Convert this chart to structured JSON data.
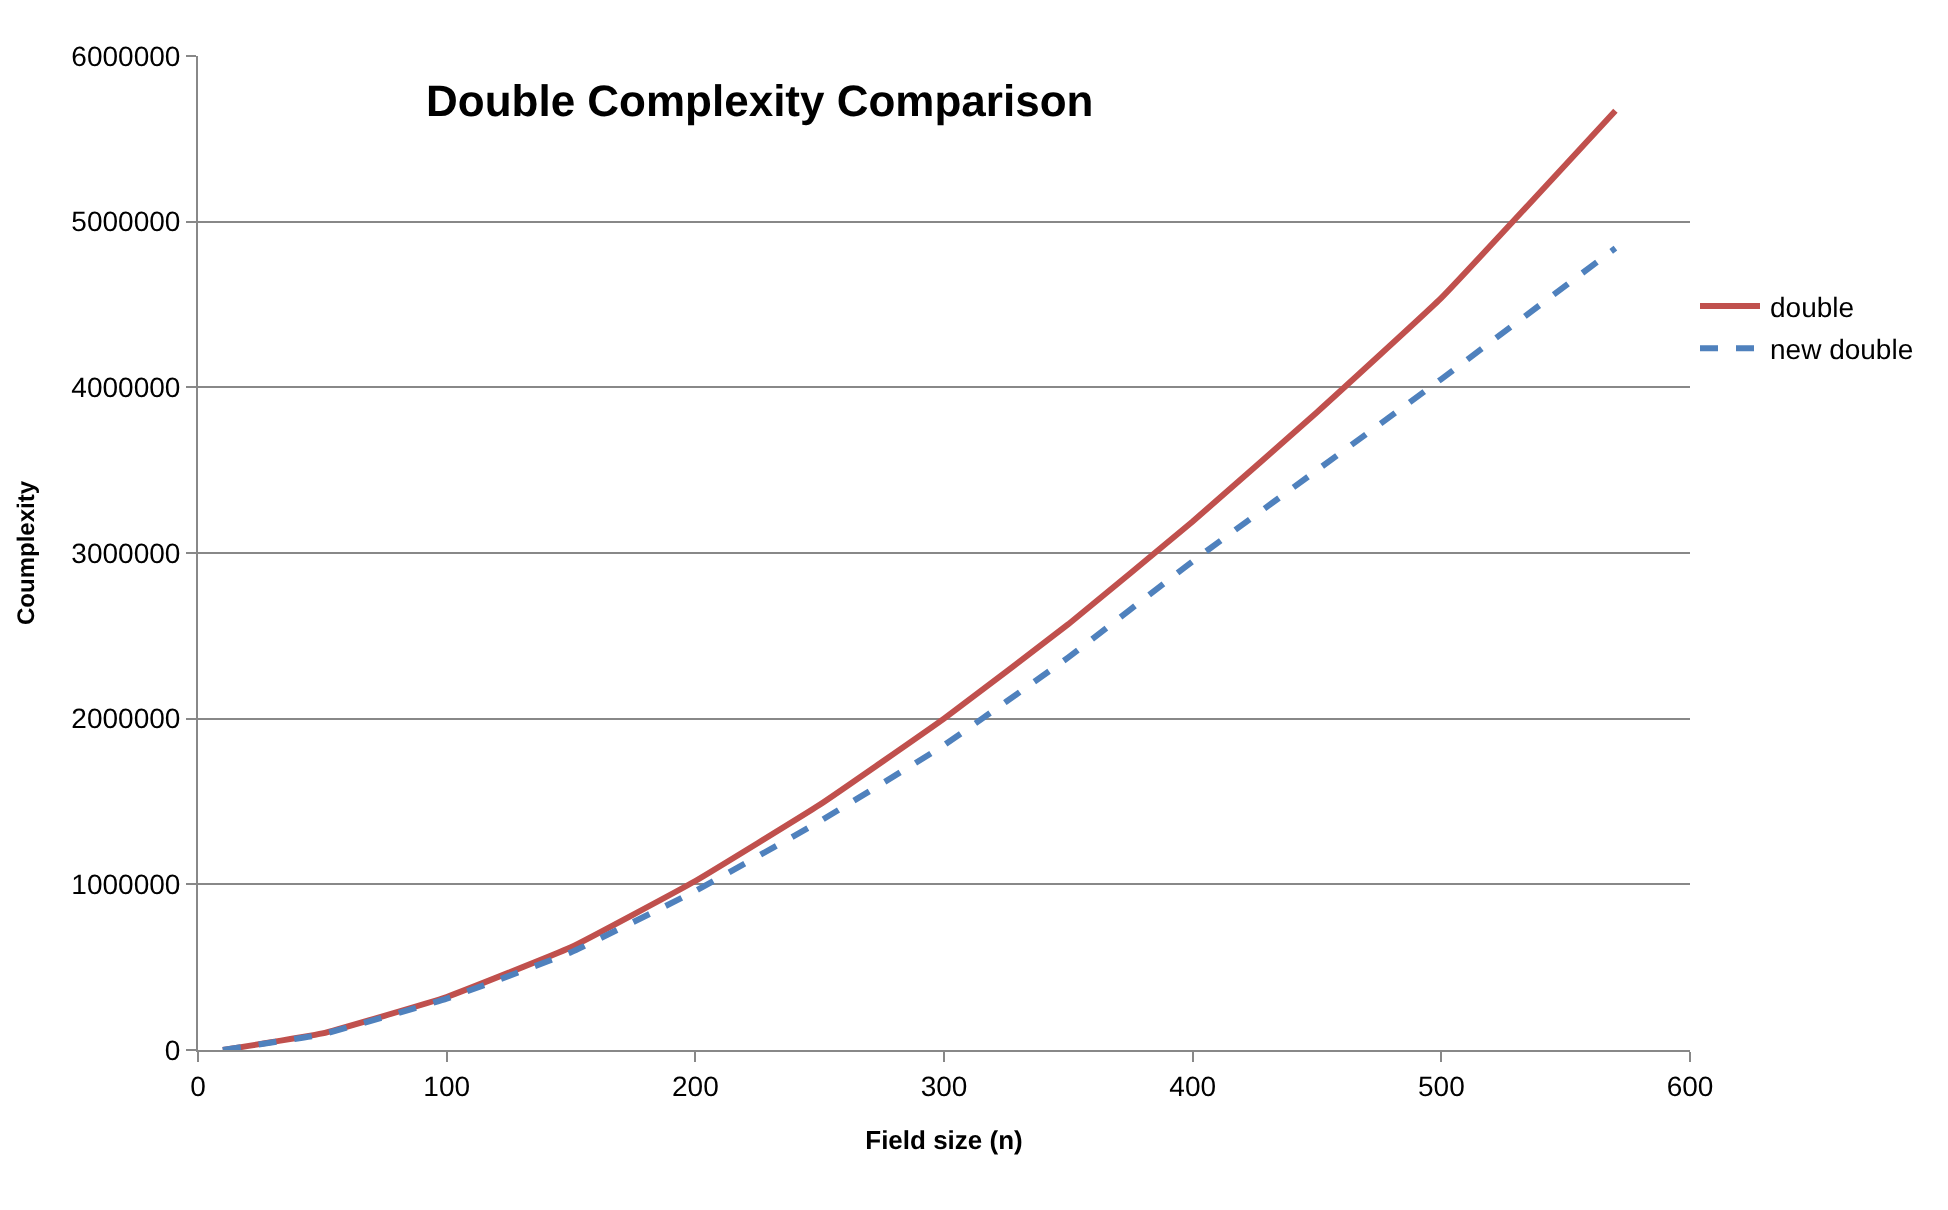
{
  "chart_data": {
    "type": "line",
    "title": "Double Complexity Comparison",
    "xlabel": "Field size (n)",
    "ylabel": "Coumplexity",
    "x": [
      10,
      50,
      100,
      150,
      200,
      250,
      300,
      350,
      400,
      450,
      500,
      570
    ],
    "series": [
      {
        "name": "double",
        "color": "#c0504d",
        "line_style": "solid",
        "values": [
          0,
          100000,
          320000,
          620000,
          1020000,
          1480000,
          2000000,
          2570000,
          3190000,
          3850000,
          4540000,
          5670000
        ]
      },
      {
        "name": "new double",
        "color": "#4f81bd",
        "line_style": "dashed",
        "values": [
          0,
          95000,
          310000,
          590000,
          960000,
          1380000,
          1840000,
          2370000,
          2950000,
          3500000,
          4050000,
          4840000
        ]
      }
    ],
    "xlim": [
      0,
      600
    ],
    "xticks": [
      0,
      100,
      200,
      300,
      400,
      500,
      600
    ],
    "ylim": [
      0,
      6000000
    ],
    "yticks": [
      0,
      1000000,
      2000000,
      3000000,
      4000000,
      5000000,
      6000000
    ],
    "grid": "y",
    "legend": "right",
    "marker": "none"
  }
}
